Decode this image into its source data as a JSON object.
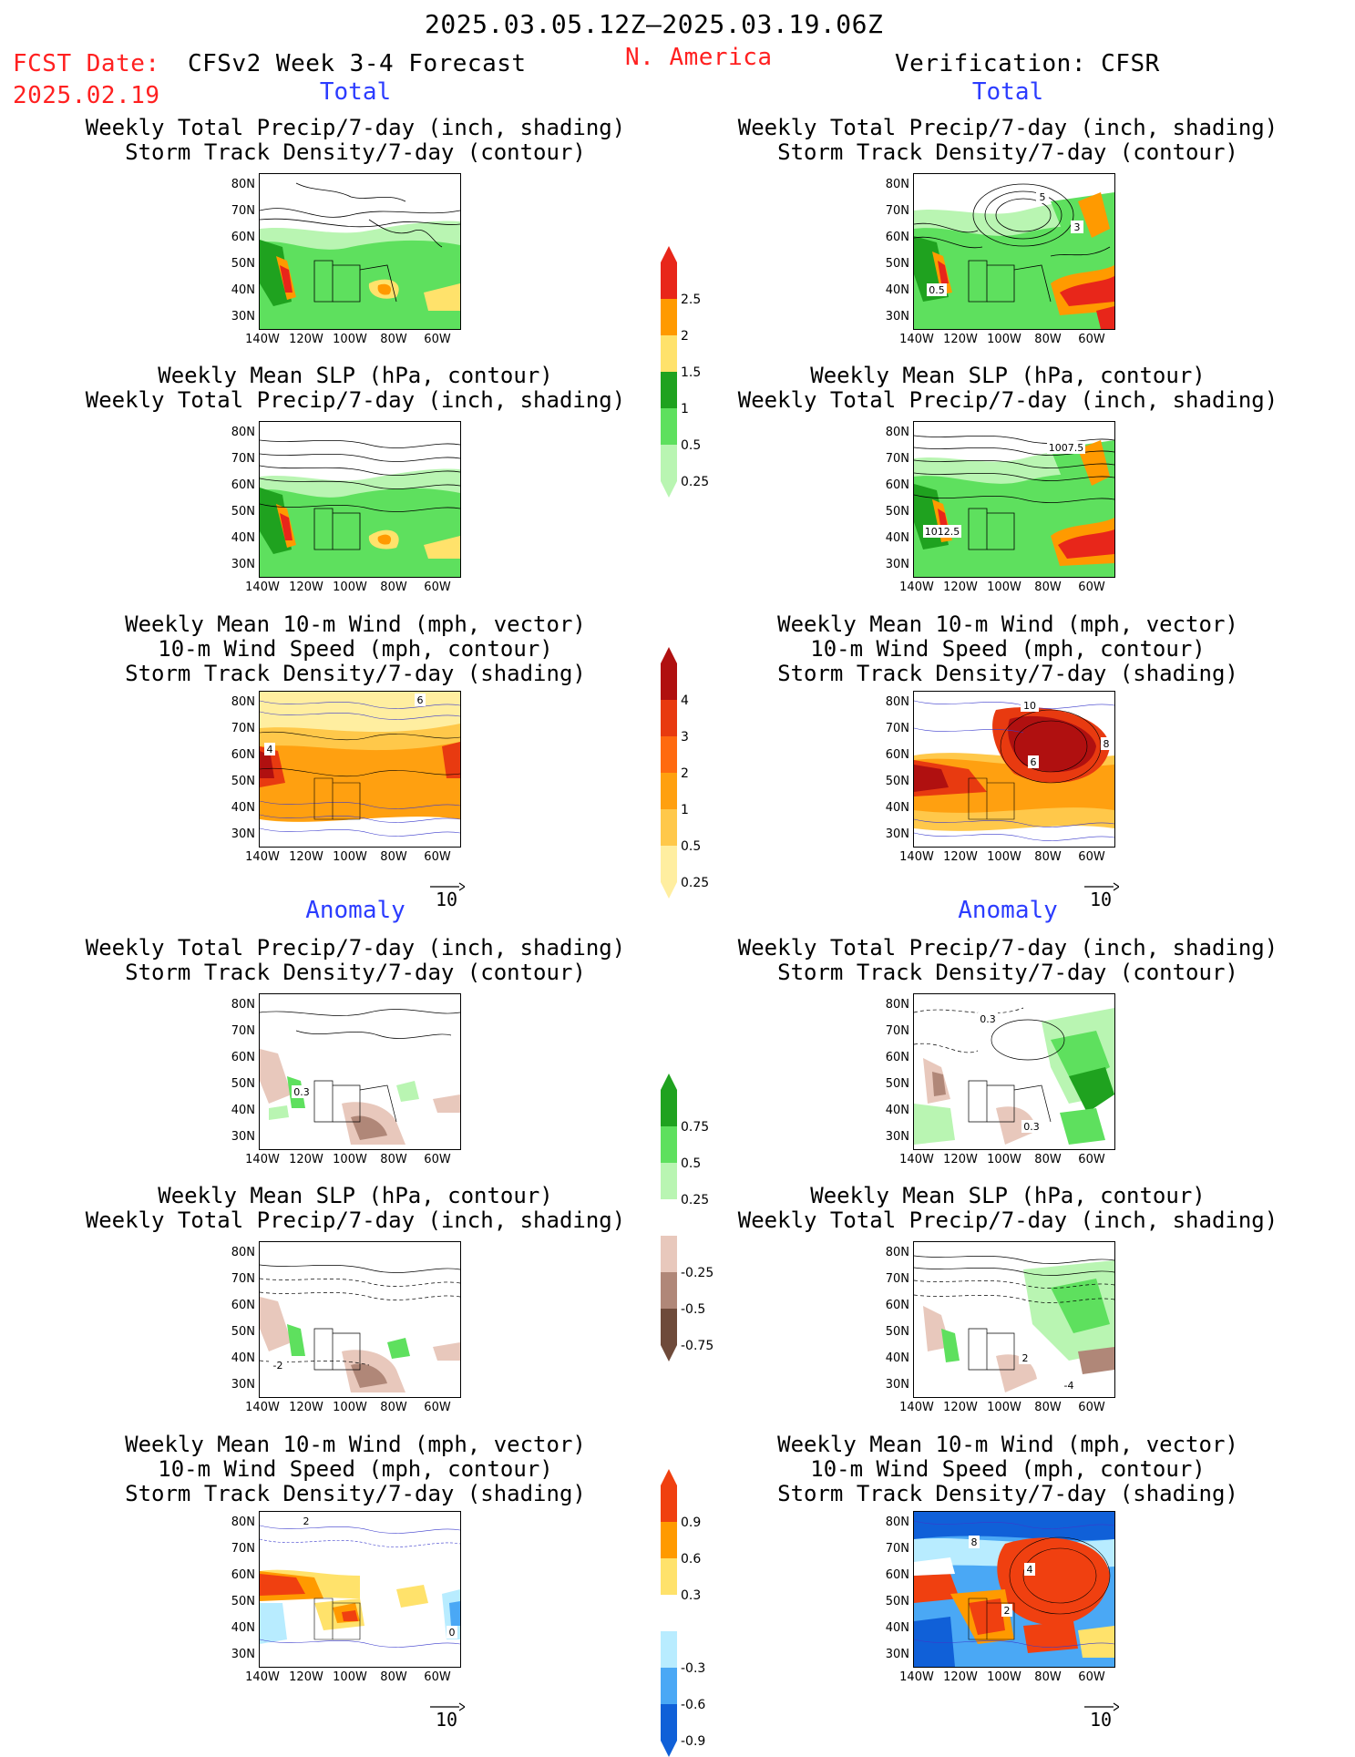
{
  "header": {
    "period": "2025.03.05.12Z–2025.03.19.06Z",
    "fcst_label": "FCST Date:",
    "fcst_date": "2025.02.19",
    "model": "CFSv2 Week 3-4 Forecast",
    "region": "N. America",
    "verification": "Verification: CFSR"
  },
  "sections": {
    "total": "Total",
    "anomaly": "Anomaly"
  },
  "axes": {
    "lat_ticks": [
      "80N",
      "70N",
      "60N",
      "50N",
      "40N",
      "30N"
    ],
    "lon_ticks": [
      "140W",
      "120W",
      "100W",
      "80W",
      "60W"
    ],
    "vector_ref": "10"
  },
  "panel_titles": {
    "precip_storm": [
      "Weekly Total Precip/7-day (inch, shading)",
      "Storm Track Density/7-day (contour)"
    ],
    "slp_precip": [
      "Weekly Mean SLP (hPa, contour)",
      "Weekly Total Precip/7-day (inch, shading)"
    ],
    "wind_storm": [
      "Weekly Mean 10-m Wind (mph, vector)",
      "10-m Wind Speed (mph, contour)",
      "Storm Track Density/7-day (shading)"
    ]
  },
  "map_labels": {
    "v_total_precip_a": "5",
    "v_total_precip_b": "0.5",
    "v_total_precip_c": "3",
    "v_total_slp_a": "1007.5",
    "v_total_slp_b": "1012.5",
    "f_total_wind_a": "4",
    "f_total_wind_b": "6",
    "v_total_wind_a": "10",
    "v_total_wind_b": "6",
    "v_total_wind_c": "8",
    "f_anom_precip": "0.3",
    "v_anom_precip_a": "0.3",
    "v_anom_precip_b": "0.3",
    "f_anom_slp": "-2",
    "v_anom_slp_a": "-4",
    "v_anom_slp_b": "2",
    "f_anom_wind_a": "2",
    "f_anom_wind_b": "0",
    "v_anom_wind_a": "4",
    "v_anom_wind_b": "2",
    "v_anom_wind_c": "8"
  },
  "colorbars": {
    "total_precip": {
      "labels": [
        "2.5",
        "2",
        "1.5",
        "1",
        "0.5",
        "0.25"
      ],
      "colors": [
        "#e8261a",
        "#ff9a00",
        "#ffe26b",
        "#1fa21f",
        "#5ee05e",
        "#b9f5b2"
      ]
    },
    "total_storm": {
      "labels": [
        "4",
        "3",
        "2",
        "1",
        "0.5",
        "0.25"
      ],
      "colors": [
        "#b01010",
        "#e83a10",
        "#ff6a10",
        "#ffa010",
        "#ffc84a",
        "#ffeea0"
      ]
    },
    "anom_precip": {
      "labels": [
        "0.75",
        "0.5",
        "0.25",
        "-0.25",
        "-0.5",
        "-0.75"
      ],
      "colors": [
        "#1fa21f",
        "#5ee05e",
        "#b9f5b2",
        "#ffffff",
        "#e8c8bc",
        "#b08778",
        "#6e4a3a"
      ]
    },
    "anom_storm": {
      "labels": [
        "0.9",
        "0.6",
        "0.3",
        "-0.3",
        "-0.6",
        "-0.9"
      ],
      "colors": [
        "#f04010",
        "#ff9a00",
        "#ffe26b",
        "#ffffff",
        "#b8ecff",
        "#4aa8f5",
        "#1060d8"
      ]
    }
  },
  "chart_data": {
    "type": "heatmap",
    "title": "2025.03.05.12Z–2025.03.19.06Z",
    "region": "N. America",
    "lat_range": [
      "30N",
      "80N"
    ],
    "lon_range": [
      "140W",
      "60W"
    ],
    "panels": [
      {
        "section": "Total",
        "source": "CFSv2 Week 3-4 Forecast",
        "shading": "Weekly Total Precip/7-day (inch)",
        "contour": "Storm Track Density/7-day"
      },
      {
        "section": "Total",
        "source": "Verification: CFSR",
        "shading": "Weekly Total Precip/7-day (inch)",
        "contour": "Storm Track Density/7-day"
      },
      {
        "section": "Total",
        "source": "CFSv2 Week 3-4 Forecast",
        "shading": "Weekly Total Precip/7-day (inch)",
        "contour": "Weekly Mean SLP (hPa)"
      },
      {
        "section": "Total",
        "source": "Verification: CFSR",
        "shading": "Weekly Total Precip/7-day (inch)",
        "contour": "Weekly Mean SLP (hPa)",
        "contour_labels": [
          1007.5,
          1012.5
        ]
      },
      {
        "section": "Total",
        "source": "CFSv2 Week 3-4 Forecast",
        "shading": "Storm Track Density/7-day",
        "contour": "10-m Wind Speed (mph)",
        "vector": "Weekly Mean 10-m Wind (mph)"
      },
      {
        "section": "Total",
        "source": "Verification: CFSR",
        "shading": "Storm Track Density/7-day",
        "contour": "10-m Wind Speed (mph)",
        "vector": "Weekly Mean 10-m Wind (mph)"
      },
      {
        "section": "Anomaly",
        "source": "CFSv2 Week 3-4 Forecast",
        "shading": "Weekly Total Precip/7-day (inch)",
        "contour": "Storm Track Density/7-day"
      },
      {
        "section": "Anomaly",
        "source": "Verification: CFSR",
        "shading": "Weekly Total Precip/7-day (inch)",
        "contour": "Storm Track Density/7-day"
      },
      {
        "section": "Anomaly",
        "source": "CFSv2 Week 3-4 Forecast",
        "shading": "Weekly Total Precip/7-day (inch)",
        "contour": "Weekly Mean SLP (hPa)"
      },
      {
        "section": "Anomaly",
        "source": "Verification: CFSR",
        "shading": "Weekly Total Precip/7-day (inch)",
        "contour": "Weekly Mean SLP (hPa)"
      },
      {
        "section": "Anomaly",
        "source": "CFSv2 Week 3-4 Forecast",
        "shading": "Storm Track Density/7-day",
        "contour": "10-m Wind Speed (mph)",
        "vector": "Weekly Mean 10-m Wind (mph)"
      },
      {
        "section": "Anomaly",
        "source": "Verification: CFSR",
        "shading": "Storm Track Density/7-day",
        "contour": "10-m Wind Speed (mph)",
        "vector": "Weekly Mean 10-m Wind (mph)"
      }
    ],
    "colorbar_levels": {
      "total_precip": [
        0.25,
        0.5,
        1,
        1.5,
        2,
        2.5
      ],
      "total_storm_density": [
        0.25,
        0.5,
        1,
        2,
        3,
        4
      ],
      "anomaly_precip": [
        -0.75,
        -0.5,
        -0.25,
        0.25,
        0.5,
        0.75
      ],
      "anomaly_storm_density": [
        -0.9,
        -0.6,
        -0.3,
        0.3,
        0.6,
        0.9
      ]
    }
  }
}
